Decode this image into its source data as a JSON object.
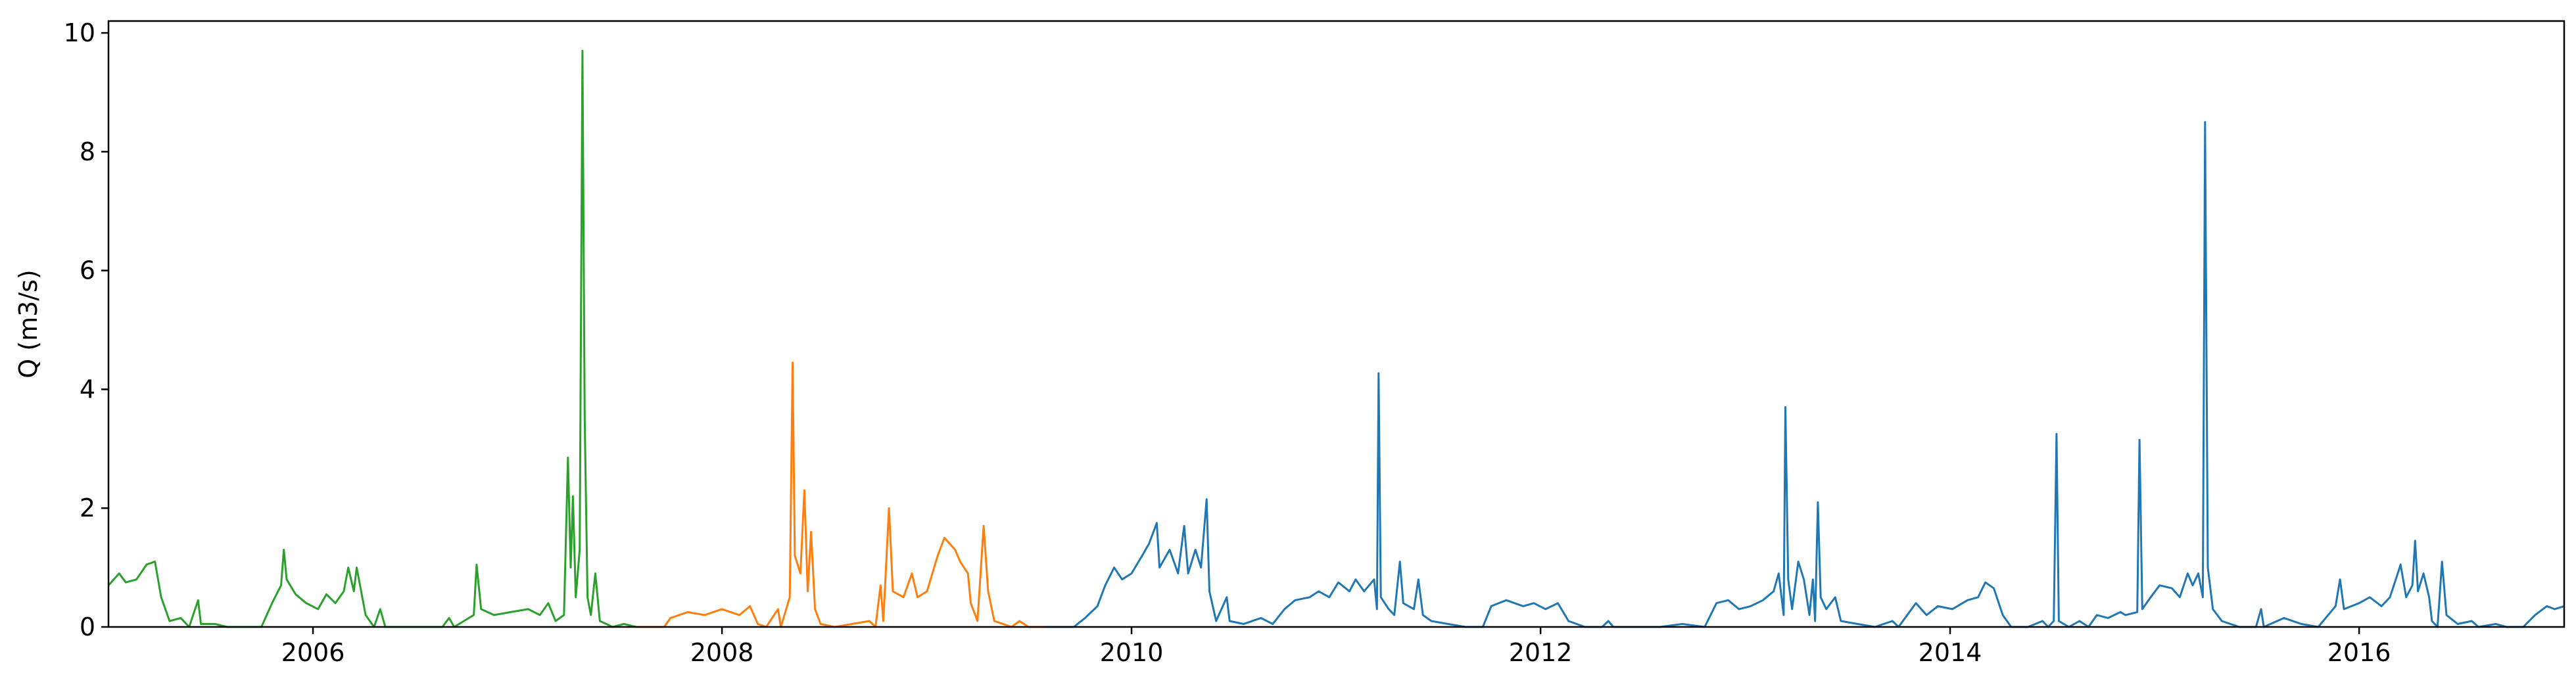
{
  "chart_data": {
    "type": "line",
    "title": "",
    "xlabel": "",
    "ylabel": "Q (m3/s)",
    "xlim": [
      "2005-01-01",
      "2017-01-01"
    ],
    "ylim": [
      0,
      10.2
    ],
    "x_ticks": [
      "2006",
      "2008",
      "2010",
      "2012",
      "2014",
      "2016"
    ],
    "y_ticks": [
      "0",
      "2",
      "4",
      "6",
      "8",
      "10"
    ],
    "grid": false,
    "legend": "none",
    "series": [
      {
        "color": "#2ca02c",
        "points": [
          [
            "2005-01-01",
            0.7
          ],
          [
            "2005-01-20",
            0.9
          ],
          [
            "2005-02-01",
            0.75
          ],
          [
            "2005-02-20",
            0.8
          ],
          [
            "2005-03-10",
            1.05
          ],
          [
            "2005-03-25",
            1.1
          ],
          [
            "2005-04-05",
            0.5
          ],
          [
            "2005-04-20",
            0.1
          ],
          [
            "2005-05-10",
            0.15
          ],
          [
            "2005-05-25",
            0.0
          ],
          [
            "2005-06-10",
            0.45
          ],
          [
            "2005-06-15",
            0.05
          ],
          [
            "2005-07-10",
            0.05
          ],
          [
            "2005-08-01",
            0.0
          ],
          [
            "2005-10-01",
            0.0
          ],
          [
            "2005-10-20",
            0.4
          ],
          [
            "2005-11-05",
            0.7
          ],
          [
            "2005-11-10",
            1.3
          ],
          [
            "2005-11-15",
            0.8
          ],
          [
            "2005-12-01",
            0.55
          ],
          [
            "2005-12-20",
            0.4
          ],
          [
            "2006-01-10",
            0.3
          ],
          [
            "2006-01-25",
            0.55
          ],
          [
            "2006-02-10",
            0.4
          ],
          [
            "2006-02-25",
            0.6
          ],
          [
            "2006-03-05",
            1.0
          ],
          [
            "2006-03-15",
            0.6
          ],
          [
            "2006-03-20",
            1.0
          ],
          [
            "2006-04-05",
            0.2
          ],
          [
            "2006-04-20",
            0.0
          ],
          [
            "2006-05-01",
            0.3
          ],
          [
            "2006-05-10",
            0.0
          ],
          [
            "2006-08-20",
            0.0
          ],
          [
            "2006-09-01",
            0.15
          ],
          [
            "2006-09-10",
            0.0
          ],
          [
            "2006-10-15",
            0.2
          ],
          [
            "2006-10-20",
            1.05
          ],
          [
            "2006-10-28",
            0.3
          ],
          [
            "2006-11-20",
            0.2
          ],
          [
            "2006-12-20",
            0.25
          ],
          [
            "2007-01-20",
            0.3
          ],
          [
            "2007-02-10",
            0.2
          ],
          [
            "2007-02-25",
            0.4
          ],
          [
            "2007-03-10",
            0.1
          ],
          [
            "2007-03-25",
            0.2
          ],
          [
            "2007-04-01",
            2.85
          ],
          [
            "2007-04-06",
            1.0
          ],
          [
            "2007-04-10",
            2.2
          ],
          [
            "2007-04-15",
            0.5
          ],
          [
            "2007-04-22",
            1.3
          ],
          [
            "2007-04-27",
            9.7
          ],
          [
            "2007-05-01",
            3.5
          ],
          [
            "2007-05-06",
            0.5
          ],
          [
            "2007-05-12",
            0.2
          ],
          [
            "2007-05-20",
            0.9
          ],
          [
            "2007-05-28",
            0.1
          ],
          [
            "2007-06-20",
            0.0
          ],
          [
            "2007-07-10",
            0.05
          ],
          [
            "2007-08-01",
            0.0
          ]
        ]
      },
      {
        "color": "#ff7f0e",
        "points": [
          [
            "2007-08-01",
            0.0
          ],
          [
            "2007-09-20",
            0.0
          ],
          [
            "2007-10-01",
            0.15
          ],
          [
            "2007-11-01",
            0.25
          ],
          [
            "2007-12-01",
            0.2
          ],
          [
            "2008-01-01",
            0.3
          ],
          [
            "2008-02-01",
            0.2
          ],
          [
            "2008-02-20",
            0.35
          ],
          [
            "2008-03-05",
            0.05
          ],
          [
            "2008-03-20",
            0.0
          ],
          [
            "2008-04-10",
            0.3
          ],
          [
            "2008-04-15",
            0.0
          ],
          [
            "2008-05-01",
            0.5
          ],
          [
            "2008-05-06",
            4.45
          ],
          [
            "2008-05-10",
            1.2
          ],
          [
            "2008-05-20",
            0.9
          ],
          [
            "2008-05-27",
            2.3
          ],
          [
            "2008-06-02",
            0.6
          ],
          [
            "2008-06-08",
            1.6
          ],
          [
            "2008-06-15",
            0.3
          ],
          [
            "2008-06-25",
            0.05
          ],
          [
            "2008-07-20",
            0.0
          ],
          [
            "2008-09-20",
            0.1
          ],
          [
            "2008-10-01",
            0.0
          ],
          [
            "2008-10-10",
            0.7
          ],
          [
            "2008-10-15",
            0.1
          ],
          [
            "2008-10-25",
            2.0
          ],
          [
            "2008-11-01",
            0.6
          ],
          [
            "2008-11-20",
            0.5
          ],
          [
            "2008-12-05",
            0.9
          ],
          [
            "2008-12-15",
            0.5
          ],
          [
            "2009-01-01",
            0.6
          ],
          [
            "2009-01-20",
            1.2
          ],
          [
            "2009-02-01",
            1.5
          ],
          [
            "2009-02-20",
            1.3
          ],
          [
            "2009-03-01",
            1.1
          ],
          [
            "2009-03-15",
            0.9
          ],
          [
            "2009-03-20",
            0.4
          ],
          [
            "2009-04-01",
            0.1
          ],
          [
            "2009-04-12",
            1.7
          ],
          [
            "2009-04-20",
            0.6
          ],
          [
            "2009-05-01",
            0.1
          ],
          [
            "2009-06-01",
            0.0
          ],
          [
            "2009-06-15",
            0.1
          ],
          [
            "2009-07-01",
            0.0
          ],
          [
            "2009-08-01",
            0.0
          ]
        ]
      },
      {
        "color": "#1f77b4",
        "points": [
          [
            "2009-08-01",
            0.0
          ],
          [
            "2009-09-20",
            0.0
          ],
          [
            "2009-10-10",
            0.15
          ],
          [
            "2009-11-01",
            0.35
          ],
          [
            "2009-11-15",
            0.7
          ],
          [
            "2009-12-01",
            1.0
          ],
          [
            "2009-12-15",
            0.8
          ],
          [
            "2010-01-01",
            0.9
          ],
          [
            "2010-01-20",
            1.2
          ],
          [
            "2010-02-01",
            1.4
          ],
          [
            "2010-02-15",
            1.75
          ],
          [
            "2010-02-20",
            1.0
          ],
          [
            "2010-03-10",
            1.3
          ],
          [
            "2010-03-25",
            0.9
          ],
          [
            "2010-04-05",
            1.7
          ],
          [
            "2010-04-12",
            0.9
          ],
          [
            "2010-04-25",
            1.3
          ],
          [
            "2010-05-05",
            1.0
          ],
          [
            "2010-05-15",
            2.15
          ],
          [
            "2010-05-20",
            0.6
          ],
          [
            "2010-06-01",
            0.1
          ],
          [
            "2010-06-20",
            0.5
          ],
          [
            "2010-06-25",
            0.1
          ],
          [
            "2010-07-20",
            0.05
          ],
          [
            "2010-08-20",
            0.15
          ],
          [
            "2010-09-10",
            0.05
          ],
          [
            "2010-10-01",
            0.3
          ],
          [
            "2010-10-20",
            0.45
          ],
          [
            "2010-11-15",
            0.5
          ],
          [
            "2010-12-01",
            0.6
          ],
          [
            "2010-12-20",
            0.5
          ],
          [
            "2011-01-05",
            0.75
          ],
          [
            "2011-01-25",
            0.6
          ],
          [
            "2011-02-05",
            0.8
          ],
          [
            "2011-02-20",
            0.6
          ],
          [
            "2011-03-10",
            0.8
          ],
          [
            "2011-03-15",
            0.3
          ],
          [
            "2011-03-18",
            4.27
          ],
          [
            "2011-03-22",
            0.5
          ],
          [
            "2011-04-05",
            0.3
          ],
          [
            "2011-04-15",
            0.2
          ],
          [
            "2011-04-25",
            1.1
          ],
          [
            "2011-05-01",
            0.4
          ],
          [
            "2011-05-20",
            0.3
          ],
          [
            "2011-05-28",
            0.8
          ],
          [
            "2011-06-05",
            0.2
          ],
          [
            "2011-06-20",
            0.1
          ],
          [
            "2011-07-20",
            0.05
          ],
          [
            "2011-08-20",
            0.0
          ],
          [
            "2011-09-20",
            0.0
          ],
          [
            "2011-10-05",
            0.35
          ],
          [
            "2011-11-01",
            0.45
          ],
          [
            "2011-12-01",
            0.35
          ],
          [
            "2011-12-20",
            0.4
          ],
          [
            "2012-01-10",
            0.3
          ],
          [
            "2012-02-01",
            0.4
          ],
          [
            "2012-02-20",
            0.1
          ],
          [
            "2012-03-20",
            0.0
          ],
          [
            "2012-04-20",
            0.0
          ],
          [
            "2012-05-01",
            0.1
          ],
          [
            "2012-05-10",
            0.0
          ],
          [
            "2012-08-01",
            0.0
          ],
          [
            "2012-09-10",
            0.05
          ],
          [
            "2012-10-20",
            0.0
          ],
          [
            "2012-11-10",
            0.4
          ],
          [
            "2012-12-01",
            0.45
          ],
          [
            "2012-12-20",
            0.3
          ],
          [
            "2013-01-10",
            0.35
          ],
          [
            "2013-02-01",
            0.45
          ],
          [
            "2013-02-20",
            0.6
          ],
          [
            "2013-03-01",
            0.9
          ],
          [
            "2013-03-10",
            0.2
          ],
          [
            "2013-03-13",
            3.7
          ],
          [
            "2013-03-18",
            0.8
          ],
          [
            "2013-03-25",
            0.3
          ],
          [
            "2013-04-05",
            1.1
          ],
          [
            "2013-04-15",
            0.8
          ],
          [
            "2013-04-25",
            0.2
          ],
          [
            "2013-05-01",
            0.8
          ],
          [
            "2013-05-05",
            0.1
          ],
          [
            "2013-05-10",
            2.1
          ],
          [
            "2013-05-15",
            0.5
          ],
          [
            "2013-05-25",
            0.3
          ],
          [
            "2013-06-10",
            0.5
          ],
          [
            "2013-06-20",
            0.1
          ],
          [
            "2013-07-20",
            0.05
          ],
          [
            "2013-08-20",
            0.0
          ],
          [
            "2013-09-20",
            0.1
          ],
          [
            "2013-10-01",
            0.0
          ],
          [
            "2013-11-01",
            0.4
          ],
          [
            "2013-11-20",
            0.2
          ],
          [
            "2013-12-10",
            0.35
          ],
          [
            "2014-01-05",
            0.3
          ],
          [
            "2014-02-01",
            0.45
          ],
          [
            "2014-02-20",
            0.5
          ],
          [
            "2014-03-05",
            0.75
          ],
          [
            "2014-03-20",
            0.65
          ],
          [
            "2014-04-05",
            0.2
          ],
          [
            "2014-04-20",
            0.0
          ],
          [
            "2014-05-20",
            0.0
          ],
          [
            "2014-06-15",
            0.1
          ],
          [
            "2014-06-25",
            0.0
          ],
          [
            "2014-07-05",
            0.1
          ],
          [
            "2014-07-10",
            3.25
          ],
          [
            "2014-07-14",
            0.1
          ],
          [
            "2014-08-01",
            0.0
          ],
          [
            "2014-08-20",
            0.1
          ],
          [
            "2014-09-05",
            0.0
          ],
          [
            "2014-09-20",
            0.2
          ],
          [
            "2014-10-10",
            0.15
          ],
          [
            "2014-11-01",
            0.25
          ],
          [
            "2014-11-10",
            0.2
          ],
          [
            "2014-12-01",
            0.25
          ],
          [
            "2014-12-05",
            3.15
          ],
          [
            "2014-12-10",
            0.3
          ],
          [
            "2014-12-25",
            0.5
          ],
          [
            "2015-01-10",
            0.7
          ],
          [
            "2015-02-01",
            0.65
          ],
          [
            "2015-02-15",
            0.5
          ],
          [
            "2015-03-01",
            0.9
          ],
          [
            "2015-03-10",
            0.7
          ],
          [
            "2015-03-20",
            0.9
          ],
          [
            "2015-03-28",
            0.5
          ],
          [
            "2015-04-01",
            8.5
          ],
          [
            "2015-04-06",
            1.0
          ],
          [
            "2015-04-15",
            0.3
          ],
          [
            "2015-05-01",
            0.1
          ],
          [
            "2015-06-01",
            0.0
          ],
          [
            "2015-07-01",
            0.0
          ],
          [
            "2015-07-10",
            0.3
          ],
          [
            "2015-07-15",
            0.0
          ],
          [
            "2015-08-20",
            0.15
          ],
          [
            "2015-09-20",
            0.05
          ],
          [
            "2015-10-20",
            0.0
          ],
          [
            "2015-11-20",
            0.35
          ],
          [
            "2015-11-28",
            0.8
          ],
          [
            "2015-12-05",
            0.3
          ],
          [
            "2016-01-01",
            0.4
          ],
          [
            "2016-01-20",
            0.5
          ],
          [
            "2016-02-10",
            0.35
          ],
          [
            "2016-02-25",
            0.5
          ],
          [
            "2016-03-10",
            0.9
          ],
          [
            "2016-03-15",
            1.05
          ],
          [
            "2016-03-25",
            0.5
          ],
          [
            "2016-04-05",
            0.7
          ],
          [
            "2016-04-10",
            1.45
          ],
          [
            "2016-04-15",
            0.6
          ],
          [
            "2016-04-25",
            0.9
          ],
          [
            "2016-05-05",
            0.5
          ],
          [
            "2016-05-10",
            0.1
          ],
          [
            "2016-05-20",
            0.0
          ],
          [
            "2016-05-28",
            1.1
          ],
          [
            "2016-06-05",
            0.2
          ],
          [
            "2016-06-25",
            0.05
          ],
          [
            "2016-07-20",
            0.1
          ],
          [
            "2016-08-01",
            0.0
          ],
          [
            "2016-09-01",
            0.05
          ],
          [
            "2016-09-20",
            0.0
          ],
          [
            "2016-10-20",
            0.0
          ],
          [
            "2016-11-10",
            0.2
          ],
          [
            "2016-12-01",
            0.35
          ],
          [
            "2016-12-15",
            0.3
          ],
          [
            "2017-01-01",
            0.35
          ]
        ]
      }
    ]
  }
}
